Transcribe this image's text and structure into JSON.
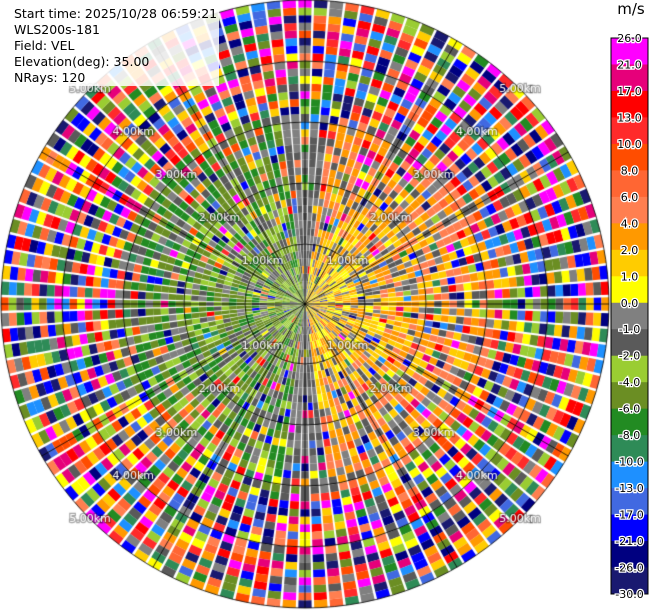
{
  "info": {
    "start_time": "Start time: 2025/10/28 06:59:21",
    "station": "WLS200s-181",
    "field": "Field: VEL",
    "elevation": "Elevation(deg): 35.00",
    "nrays": "NRays: 120"
  },
  "chart_data": {
    "type": "heatmap",
    "projection": "polar-ppi",
    "field": "VEL",
    "elevation_deg": 35.0,
    "n_rays": 120,
    "ring_labels": [
      "1.00km",
      "2.00km",
      "3.00km",
      "4.00km",
      "5.00km"
    ],
    "ring_label_angles_deg": [
      -45,
      45,
      135,
      225
    ],
    "spoke_angles_deg": [
      0,
      30,
      60,
      90,
      120,
      150,
      180,
      210,
      240,
      270,
      300,
      330
    ],
    "colorbar": {
      "unit": "m/s",
      "tick_labels": [
        "26.0",
        "21.0",
        "17.0",
        "13.0",
        "10.0",
        "8.0",
        "6.0",
        "4.0",
        "2.0",
        "1.0",
        "0.0",
        "-1.0",
        "-2.0",
        "-4.0",
        "-6.0",
        "-8.0",
        "-10.0",
        "-13.0",
        "-17.0",
        "-21.0",
        "-26.0",
        "-30.0"
      ],
      "colors": [
        "#ff00ff",
        "#e6007a",
        "#ff0000",
        "#ff2a2a",
        "#ff4d00",
        "#ff6633",
        "#ff7f50",
        "#ff9900",
        "#ffcc00",
        "#ffff00",
        "#808080",
        "#5a5a5a",
        "#9acd32",
        "#6b8e23",
        "#228b22",
        "#2e8b57",
        "#1e90ff",
        "#4169e1",
        "#0000ff",
        "#000080",
        "#191970"
      ]
    }
  }
}
